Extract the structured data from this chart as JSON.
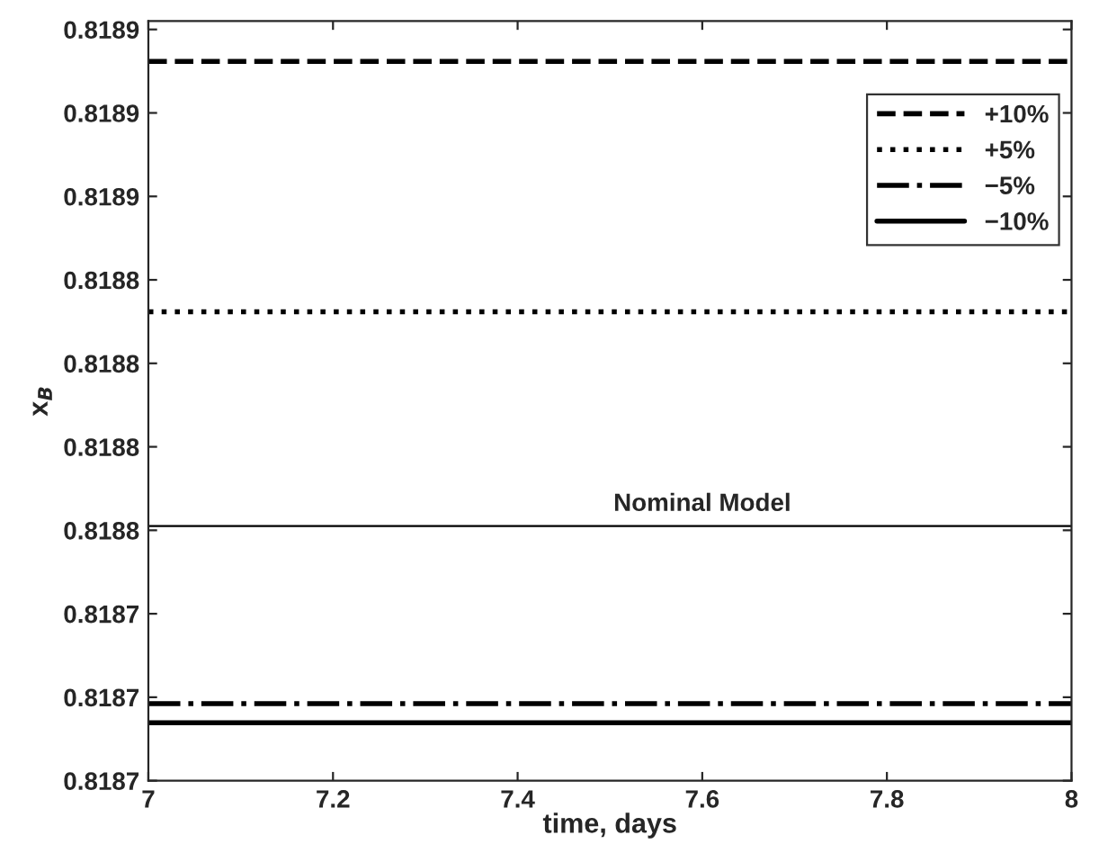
{
  "chart_data": {
    "type": "line",
    "xlabel": "time, days",
    "ylabel": "x$_{B}$",
    "x": [
      7,
      8
    ],
    "series": [
      {
        "name": "+10%",
        "color": "#000000",
        "line_style": "dashed",
        "values": [
          0.8189235,
          0.8189235
        ]
      },
      {
        "name": "+5%",
        "color": "#000000",
        "line_style": "dotted",
        "values": [
          0.8188335,
          0.8188335
        ]
      },
      {
        "name": "−5%",
        "color": "#000000",
        "line_style": "dashdot",
        "values": [
          0.8186927,
          0.8186927
        ]
      },
      {
        "name": "−10%",
        "color": "#000000",
        "line_style": "solid",
        "values": [
          0.8186858,
          0.8186858
        ]
      },
      {
        "color": "#000000",
        "line_style": "solid",
        "values": [
          0.8187565,
          0.8187565
        ]
      }
    ],
    "annotations": [
      {
        "text": "Nominal Model",
        "x": 7.6,
        "y": 0.8187565
      }
    ],
    "xlim": [
      7,
      8
    ],
    "xticks": [
      7,
      7.2,
      7.4,
      7.6,
      7.8,
      8
    ],
    "ylim": [
      0.818665,
      0.818938
    ],
    "yticks": [
      {
        "value": 0.818665,
        "label": "0.8187"
      },
      {
        "value": 0.818695,
        "label": "0.8187"
      },
      {
        "value": 0.818725,
        "label": "0.8187"
      },
      {
        "value": 0.818755,
        "label": "0.8188"
      },
      {
        "value": 0.818785,
        "label": "0.8188"
      },
      {
        "value": 0.818815,
        "label": "0.8188"
      },
      {
        "value": 0.818845,
        "label": "0.8188"
      },
      {
        "value": 0.818875,
        "label": "0.8189"
      },
      {
        "value": 0.818905,
        "label": "0.8189"
      },
      {
        "value": 0.818935,
        "label": "0.8189"
      }
    ],
    "grid": false,
    "legend": "top right"
  }
}
